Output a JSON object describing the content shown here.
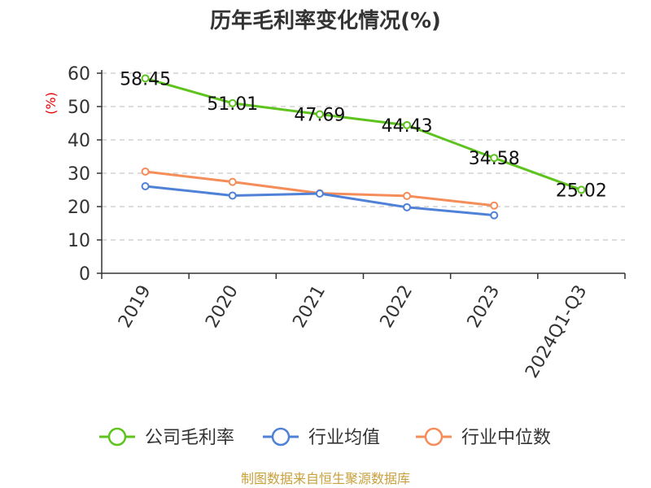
{
  "chart_data": {
    "type": "line",
    "title": "历年毛利率变化情况(%)",
    "ylabel": "(%)",
    "xlabel": "",
    "categories": [
      "2019",
      "2020",
      "2021",
      "2022",
      "2023",
      "2024Q1-Q3"
    ],
    "ylim": [
      0,
      60
    ],
    "yticks": [
      0,
      10,
      20,
      30,
      40,
      50,
      60
    ],
    "grid": true,
    "legend_position": "bottom",
    "series": [
      {
        "name": "公司毛利率",
        "color": "#5ec31e",
        "values": [
          58.45,
          51.01,
          47.69,
          44.43,
          34.58,
          25.02
        ],
        "labels": [
          "58.45",
          "51.01",
          "47.69",
          "44.43",
          "34.58",
          "25.02"
        ]
      },
      {
        "name": "行业均值",
        "color": "#4f82d6",
        "values": [
          26.1,
          23.3,
          23.9,
          19.8,
          17.4,
          null
        ]
      },
      {
        "name": "行业中位数",
        "color": "#f58d5a",
        "values": [
          30.5,
          27.4,
          24.0,
          23.2,
          20.3,
          null
        ]
      }
    ]
  },
  "footer": {
    "source": "制图数据来自恒生聚源数据库"
  }
}
